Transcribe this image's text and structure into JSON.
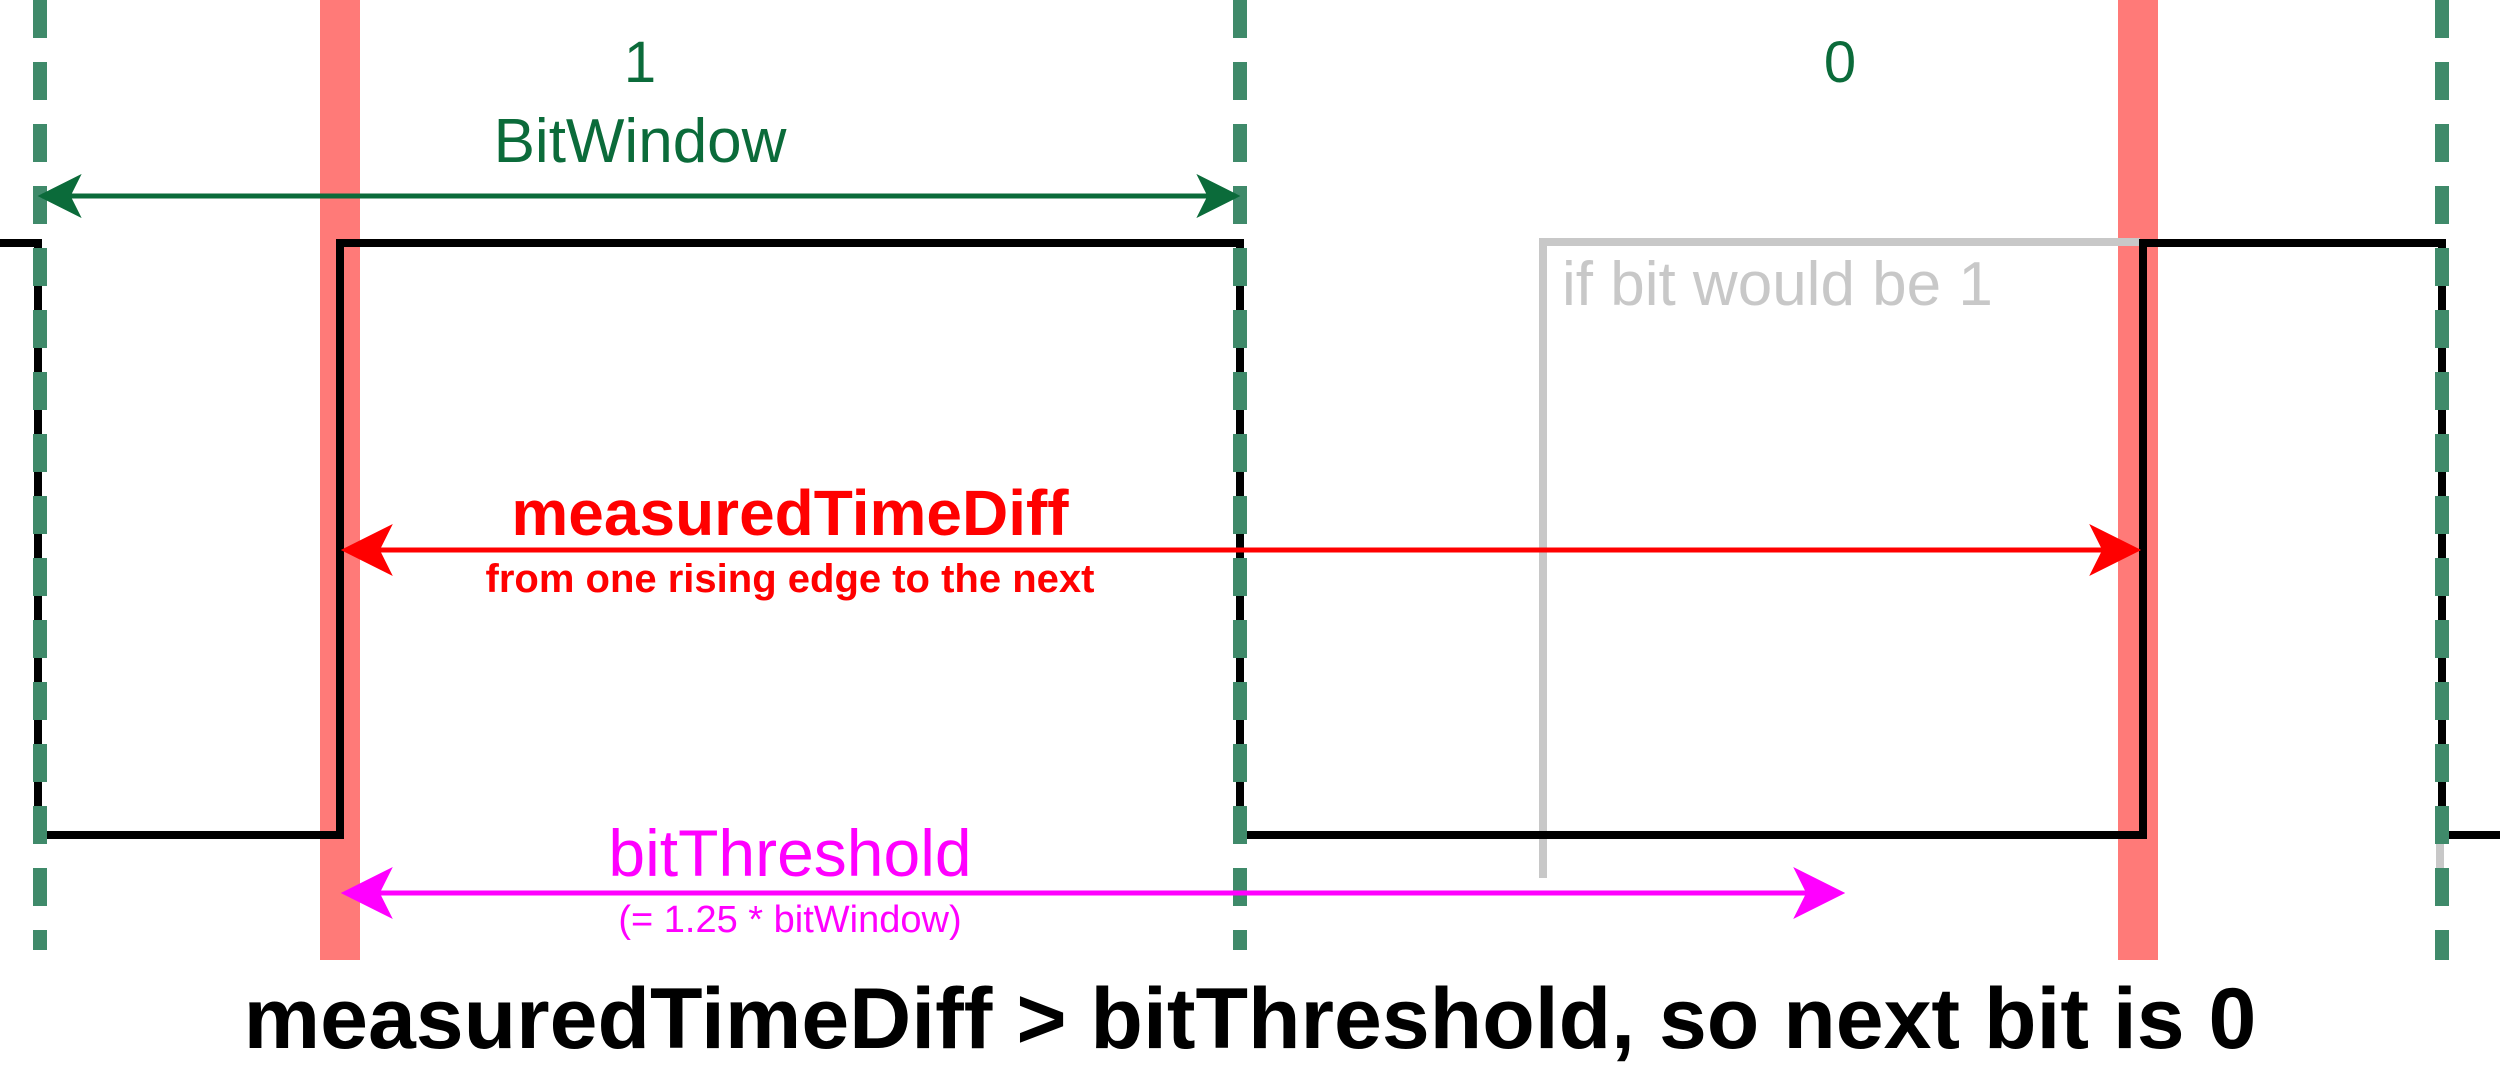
{
  "bit_labels": {
    "bit1": "1",
    "bit0": "0"
  },
  "bit_window": {
    "label": "BitWindow"
  },
  "alternate_trace": {
    "label": "if bit would be 1"
  },
  "measured_time_diff": {
    "label": "measuredTimeDiff",
    "sublabel": "from one rising edge to the next"
  },
  "bit_threshold": {
    "label": "bitThreshold",
    "sublabel": "(= 1.25 * bitWindow)"
  },
  "conclusion": "measuredTimeDiff > bitThreshold, so next bit is 0",
  "colors": {
    "signal": "#000000",
    "bit_window_green": "#0b6b3a",
    "dashed_marker": "#3f8a6a",
    "rising_edge_band": "#ff7a78",
    "measured_red": "#ff0000",
    "threshold_magenta": "#ff00ff",
    "alternate_gray": "#c8c8c8"
  }
}
